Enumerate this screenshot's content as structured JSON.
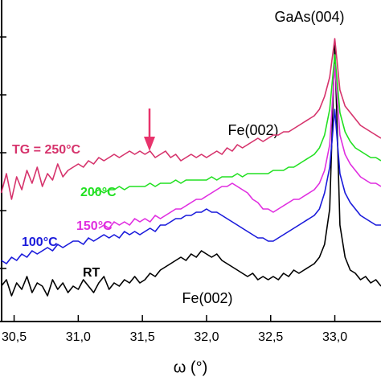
{
  "chart_data": {
    "type": "line",
    "x_label": "ω (°)",
    "x": [
      30.4,
      30.44,
      30.48,
      30.52,
      30.56,
      30.6,
      30.64,
      30.68,
      30.72,
      30.76,
      30.8,
      30.84,
      30.88,
      30.92,
      30.96,
      31.0,
      31.04,
      31.08,
      31.12,
      31.16,
      31.2,
      31.24,
      31.28,
      31.32,
      31.36,
      31.4,
      31.44,
      31.48,
      31.52,
      31.56,
      31.6,
      31.64,
      31.68,
      31.72,
      31.76,
      31.8,
      31.84,
      31.88,
      31.92,
      31.96,
      32.0,
      32.04,
      32.08,
      32.12,
      32.16,
      32.2,
      32.24,
      32.28,
      32.32,
      32.36,
      32.4,
      32.44,
      32.48,
      32.52,
      32.56,
      32.6,
      32.64,
      32.68,
      32.72,
      32.76,
      32.8,
      32.84,
      32.88,
      32.92,
      32.96,
      33.0,
      33.04,
      33.08,
      33.12,
      33.16,
      33.2,
      33.24,
      33.28,
      33.32,
      33.36
    ],
    "series": [
      {
        "name": "RT",
        "color": "#000000",
        "values": [
          11,
          13,
          8,
          12,
          10,
          14,
          9,
          12,
          11,
          8,
          13,
          10,
          12,
          9,
          11,
          10,
          13,
          11,
          9,
          12,
          14,
          10,
          12,
          11,
          13,
          12,
          14,
          12,
          13,
          15,
          14,
          16,
          17,
          18,
          19,
          20,
          19,
          21,
          20,
          22,
          21,
          20,
          21,
          19,
          18,
          17,
          16,
          15,
          14,
          15,
          13,
          14,
          13,
          14,
          13,
          15,
          14,
          16,
          15,
          16,
          17,
          18,
          20,
          24,
          35,
          86,
          30,
          20,
          16,
          15,
          13,
          14,
          12,
          13,
          11
        ]
      },
      {
        "name": "100°C",
        "color": "#1a1adb",
        "values": [
          19,
          18,
          20,
          19,
          21,
          20,
          22,
          21,
          22,
          23,
          22,
          24,
          23,
          24,
          25,
          25,
          24,
          26,
          25,
          26,
          27,
          26,
          27,
          26,
          28,
          27,
          28,
          27,
          28,
          29,
          28,
          30,
          30,
          31,
          32,
          32,
          33,
          33,
          34,
          34,
          35,
          34,
          34,
          33,
          32,
          31,
          30,
          29,
          28,
          27,
          26,
          26,
          25,
          25,
          26,
          27,
          28,
          29,
          30,
          31,
          32,
          33,
          35,
          40,
          48,
          66,
          46,
          40,
          37,
          35,
          33,
          32,
          31,
          30,
          30
        ]
      },
      {
        "name": "150°C",
        "color": "#e02ee0",
        "values": [
          null,
          null,
          null,
          null,
          null,
          null,
          null,
          null,
          null,
          null,
          null,
          null,
          null,
          null,
          null,
          null,
          null,
          null,
          null,
          29,
          30,
          29,
          31,
          30,
          31,
          30,
          32,
          31,
          32,
          31,
          33,
          32,
          33,
          34,
          35,
          35,
          36,
          37,
          38,
          38,
          39,
          40,
          41,
          42,
          42,
          43,
          42,
          41,
          40,
          38,
          37,
          35,
          35,
          34,
          35,
          36,
          37,
          38,
          38,
          39,
          40,
          41,
          43,
          47,
          55,
          80,
          58,
          52,
          49,
          47,
          45,
          44,
          43,
          43,
          42
        ]
      },
      {
        "name": "200°C",
        "color": "#22e022",
        "values": [
          null,
          null,
          null,
          null,
          null,
          null,
          null,
          null,
          null,
          null,
          null,
          null,
          null,
          null,
          null,
          null,
          null,
          null,
          40,
          41,
          40,
          41,
          41,
          42,
          41,
          42,
          42,
          42,
          42,
          43,
          42,
          43,
          43,
          43,
          44,
          43,
          44,
          44,
          44,
          44,
          44,
          45,
          44,
          45,
          45,
          45,
          46,
          45,
          46,
          46,
          46,
          46,
          46,
          47,
          47,
          47,
          48,
          48,
          49,
          50,
          51,
          52,
          54,
          58,
          66,
          83,
          65,
          59,
          56,
          54,
          53,
          52,
          51,
          51,
          50
        ]
      },
      {
        "name": "TG = 250°C",
        "color": "#d6336c",
        "values": [
          40,
          46,
          38,
          45,
          41,
          47,
          43,
          48,
          42,
          46,
          44,
          49,
          45,
          47,
          48,
          49,
          48,
          50,
          49,
          51,
          50,
          51,
          52,
          51,
          52,
          53,
          52,
          53,
          52,
          53,
          51,
          52,
          53,
          51,
          52,
          50,
          51,
          52,
          51,
          52,
          51,
          52,
          53,
          52,
          54,
          53,
          55,
          54,
          55,
          56,
          57,
          56,
          57,
          58,
          58,
          59,
          59,
          60,
          61,
          62,
          63,
          64,
          66,
          70,
          76,
          88,
          72,
          67,
          65,
          63,
          61,
          60,
          59,
          58,
          57
        ]
      }
    ],
    "xlim": [
      30.39,
      33.36
    ],
    "xticks": [
      {
        "value": 30.5,
        "label": "30,5"
      },
      {
        "value": 31.0,
        "label": "31,0"
      },
      {
        "value": 31.5,
        "label": "31,5"
      },
      {
        "value": 32.0,
        "label": "32,0"
      },
      {
        "value": 32.5,
        "label": "32,5"
      },
      {
        "value": 33.0,
        "label": "33,0"
      }
    ],
    "ylim": [
      0,
      100
    ],
    "yticks": [
      16.5,
      34.5,
      52.5,
      70.5,
      88.5
    ],
    "annotations": [
      "GaAs(004)",
      "Fe(002)",
      "Fe(002)"
    ]
  }
}
